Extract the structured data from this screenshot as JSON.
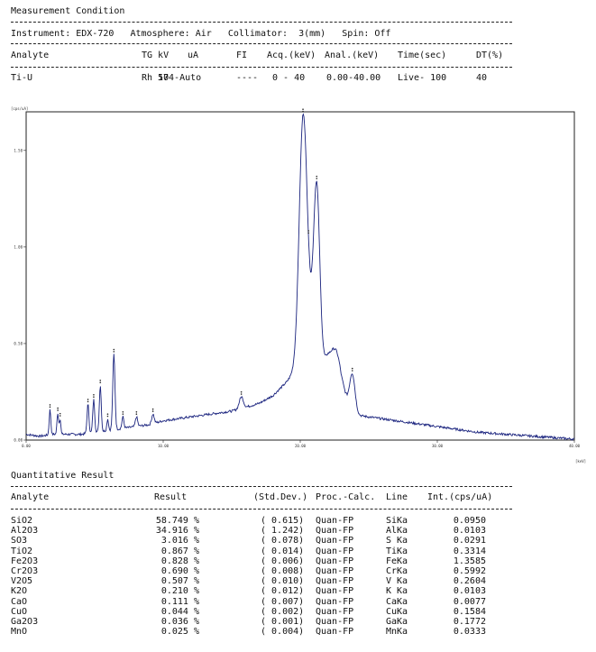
{
  "measurement": {
    "title": "Measurement Condition",
    "instrument_line": "Instrument: EDX-720   Atmosphere: Air   Collimator:  3(mm)   Spin: Off",
    "header": [
      "Analyte",
      "TG kV",
      "uA",
      "FI",
      "Acq.(keV)",
      "Anal.(keV)",
      "Time(sec)",
      "DT(%)"
    ],
    "row": [
      "Ti-U",
      "Rh 50",
      "174-Auto",
      "----",
      "0 - 40",
      "0.00-40.00",
      "Live- 100",
      "40"
    ]
  },
  "spectrum_labels": {
    "y_unit": "[cps/uA]",
    "x_unit": "[keV]",
    "x_ticks": [
      "0.00",
      "10.00",
      "20.00",
      "30.00",
      "40.00"
    ],
    "y_ticks": [
      "0.00",
      "0.50",
      "1.00",
      "1.50"
    ]
  },
  "chart_data": {
    "type": "line",
    "x_label": "[keV]",
    "y_label": "[cps/uA]",
    "xlim": [
      0,
      40
    ],
    "ylim": [
      0,
      1.7
    ],
    "x_ticks": [
      0,
      10,
      20,
      30,
      40
    ],
    "y_ticks": [
      0,
      0.5,
      1.0,
      1.5
    ],
    "baseline": [
      [
        0,
        0.03
      ],
      [
        1.0,
        0.02
      ],
      [
        2.0,
        0.03
      ],
      [
        3.0,
        0.03
      ],
      [
        4.0,
        0.03
      ],
      [
        5.0,
        0.04
      ],
      [
        6.0,
        0.05
      ],
      [
        7.0,
        0.06
      ],
      [
        8.0,
        0.07
      ],
      [
        9.0,
        0.08
      ],
      [
        10.0,
        0.1
      ],
      [
        11.0,
        0.11
      ],
      [
        12.0,
        0.12
      ],
      [
        13.0,
        0.13
      ],
      [
        14.0,
        0.14
      ],
      [
        15.0,
        0.15
      ],
      [
        16.0,
        0.17
      ],
      [
        17.0,
        0.19
      ],
      [
        18.0,
        0.23
      ],
      [
        19.0,
        0.3
      ],
      [
        20.0,
        0.4
      ],
      [
        21.0,
        0.42
      ],
      [
        22.0,
        0.38
      ],
      [
        23.0,
        0.15
      ],
      [
        24.0,
        0.13
      ],
      [
        25.0,
        0.12
      ],
      [
        26.0,
        0.11
      ],
      [
        27.0,
        0.1
      ],
      [
        28.0,
        0.09
      ],
      [
        29.0,
        0.08
      ],
      [
        30.0,
        0.07
      ],
      [
        31.0,
        0.06
      ],
      [
        32.0,
        0.05
      ],
      [
        33.0,
        0.04
      ],
      [
        34.0,
        0.035
      ],
      [
        35.0,
        0.03
      ],
      [
        36.0,
        0.025
      ],
      [
        37.0,
        0.02
      ],
      [
        38.0,
        0.015
      ],
      [
        39.0,
        0.01
      ],
      [
        40.0,
        0.005
      ]
    ],
    "peaks": [
      {
        "x": 1.74,
        "y": 0.13,
        "w": 0.06
      },
      {
        "x": 2.31,
        "y": 0.11,
        "w": 0.06
      },
      {
        "x": 2.48,
        "y": 0.08,
        "w": 0.05
      },
      {
        "x": 4.51,
        "y": 0.15,
        "w": 0.07
      },
      {
        "x": 4.93,
        "y": 0.17,
        "w": 0.07
      },
      {
        "x": 5.41,
        "y": 0.24,
        "w": 0.07
      },
      {
        "x": 5.95,
        "y": 0.06,
        "w": 0.06
      },
      {
        "x": 6.4,
        "y": 0.39,
        "w": 0.08
      },
      {
        "x": 7.06,
        "y": 0.06,
        "w": 0.07
      },
      {
        "x": 8.05,
        "y": 0.05,
        "w": 0.08
      },
      {
        "x": 9.25,
        "y": 0.05,
        "w": 0.09
      },
      {
        "x": 15.7,
        "y": 0.06,
        "w": 0.15
      },
      {
        "x": 20.2,
        "y": 1.18,
        "w": 0.28
      },
      {
        "x": 20.6,
        "y": 0.2,
        "w": 0.35
      },
      {
        "x": 21.2,
        "y": 0.88,
        "w": 0.22
      },
      {
        "x": 22.7,
        "y": 0.23,
        "w": 0.45
      },
      {
        "x": 23.8,
        "y": 0.2,
        "w": 0.2
      }
    ]
  },
  "quant": {
    "title": "Quantitative Result",
    "header": [
      "Analyte",
      "Result",
      "(Std.Dev.)",
      "Proc.-Calc.",
      "Line",
      "Int.(cps/uA)"
    ],
    "rows": [
      [
        "SiO2",
        "58.749 %",
        "( 0.615)",
        "Quan-FP",
        "SiKa",
        "0.0950"
      ],
      [
        "Al2O3",
        "34.916 %",
        "( 1.242)",
        "Quan-FP",
        "AlKa",
        "0.0103"
      ],
      [
        "SO3",
        "3.016 %",
        "( 0.078)",
        "Quan-FP",
        "S Ka",
        "0.0291"
      ],
      [
        "TiO2",
        "0.867 %",
        "( 0.014)",
        "Quan-FP",
        "TiKa",
        "0.3314"
      ],
      [
        "Fe2O3",
        "0.828 %",
        "( 0.006)",
        "Quan-FP",
        "FeKa",
        "1.3585"
      ],
      [
        "Cr2O3",
        "0.690 %",
        "( 0.008)",
        "Quan-FP",
        "CrKa",
        "0.5992"
      ],
      [
        "V2O5",
        "0.507 %",
        "( 0.010)",
        "Quan-FP",
        "V Ka",
        "0.2604"
      ],
      [
        "K2O",
        "0.210 %",
        "( 0.012)",
        "Quan-FP",
        "K Ka",
        "0.0103"
      ],
      [
        "CaO",
        "0.111 %",
        "( 0.007)",
        "Quan-FP",
        "CaKa",
        "0.0077"
      ],
      [
        "CuO",
        "0.044 %",
        "( 0.002)",
        "Quan-FP",
        "CuKa",
        "0.1584"
      ],
      [
        "Ga2O3",
        "0.036 %",
        "( 0.001)",
        "Quan-FP",
        "GaKa",
        "0.1772"
      ],
      [
        "MnO",
        "0.025 %",
        "( 0.004)",
        "Quan-FP",
        "MnKa",
        "0.0333"
      ]
    ]
  },
  "colors": {
    "line": "#1a237e",
    "text": "#111111",
    "frame": "#222222"
  }
}
